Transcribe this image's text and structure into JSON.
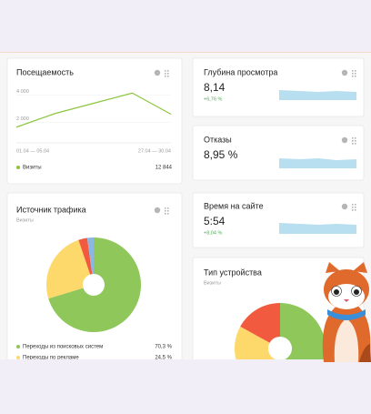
{
  "visits": {
    "title": "Посещаемость",
    "type": "line",
    "categories": [
      "01.04 — 05.04",
      null,
      null,
      null,
      "27.04 — 30.04"
    ],
    "series": [
      {
        "name": "Визиты",
        "color": "#8cc63f",
        "values": [
          1650,
          2650,
          3400,
          4150,
          2600
        ]
      }
    ],
    "ylim": [
      500,
      4500
    ],
    "yticks": [
      {
        "value": 2000,
        "label": "2 000"
      },
      {
        "value": 4000,
        "label": "4 000"
      }
    ],
    "total": "12 844"
  },
  "sources": {
    "title": "Источник трафика",
    "subtitle": "Визиты",
    "type": "pie",
    "categories": [
      "Переходы из поисковых систем",
      "Переходы по рекламе",
      null,
      null
    ],
    "values": [
      70.3,
      24.5,
      3.0,
      2.2
    ],
    "value_labels": [
      "70,3 %",
      "24,5 %",
      null,
      null
    ],
    "colors": [
      "#8fc75a",
      "#fdd96b",
      "#f25a40",
      "#8db6e0"
    ]
  },
  "depth": {
    "title": "Глубина просмотра",
    "value": "8,14",
    "change": "+6,76 %"
  },
  "bounce": {
    "title": "Отказы",
    "value": "8,95 %"
  },
  "time": {
    "title": "Время на сайте",
    "value": "5:54",
    "change": "+8,04 %"
  },
  "devices": {
    "title": "Тип устройства",
    "subtitle": "Визиты",
    "type": "pie",
    "values": [
      50,
      33,
      17
    ],
    "colors": [
      "#8fc75a",
      "#fdd96b",
      "#f25a40"
    ]
  }
}
